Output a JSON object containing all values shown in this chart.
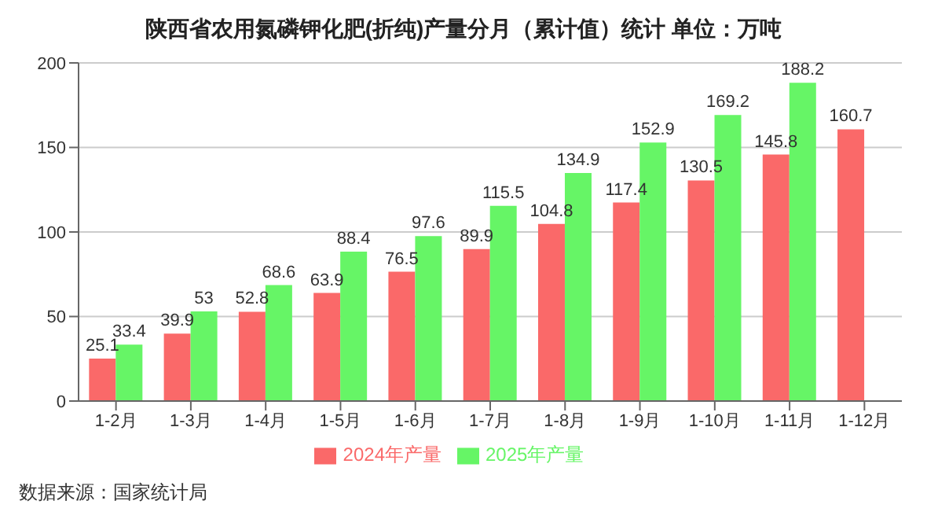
{
  "chart_data": {
    "type": "bar",
    "title": "陕西省农用氮磷钾化肥(折纯)产量分月（累计值）统计 单位：万吨",
    "categories": [
      "1-2月",
      "1-3月",
      "1-4月",
      "1-5月",
      "1-6月",
      "1-7月",
      "1-8月",
      "1-9月",
      "1-10月",
      "1-11月",
      "1-12月"
    ],
    "series": [
      {
        "name": "2024年产量",
        "color": "#fa6969",
        "values": [
          25.1,
          39.9,
          52.8,
          63.9,
          76.5,
          89.9,
          104.8,
          117.4,
          130.5,
          145.8,
          160.7
        ]
      },
      {
        "name": "2025年产量",
        "color": "#66f566",
        "values": [
          33.4,
          53,
          68.6,
          88.4,
          97.6,
          115.5,
          134.9,
          152.9,
          169.2,
          188.2,
          null
        ]
      }
    ],
    "ylim": [
      0,
      200
    ],
    "yticks": [
      0,
      50,
      100,
      150,
      200
    ],
    "grid": "y",
    "legend": "bottom",
    "data_labels": true,
    "annotations": [
      "数据来源：国家统计局"
    ]
  }
}
